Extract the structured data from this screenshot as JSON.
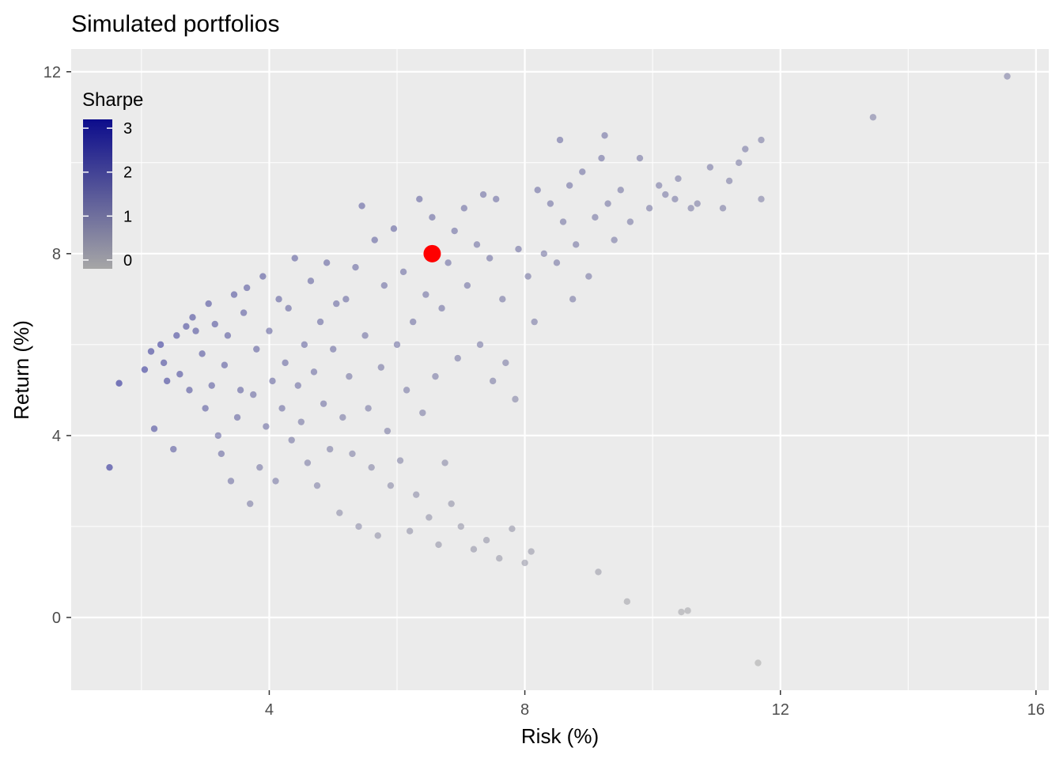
{
  "chart_data": {
    "type": "scatter",
    "title": "Simulated portfolios",
    "xlabel": "Risk (%)",
    "ylabel": "Return (%)",
    "xlim": [
      0.9,
      16.2
    ],
    "ylim": [
      -1.6,
      12.5
    ],
    "x_ticks": [
      4,
      8,
      12,
      16
    ],
    "y_ticks": [
      0,
      4,
      8,
      12
    ],
    "grid": true,
    "legend": {
      "title": "Sharpe",
      "position": "top-left inside",
      "type": "colorbar",
      "ticks": [
        0,
        1,
        2,
        3
      ],
      "range": [
        -0.2,
        3.2
      ],
      "low_color": "#a6a6a6",
      "high_color": "#0c0c8c"
    },
    "colors": {
      "panel_background": "#ebebeb",
      "grid": "#ffffff",
      "highlight": "#ff0000"
    },
    "highlight_point": {
      "x": 6.55,
      "y": 8.0
    },
    "points": [
      [
        1.5,
        3.3
      ],
      [
        1.65,
        5.15
      ],
      [
        2.05,
        5.45
      ],
      [
        2.15,
        5.85
      ],
      [
        2.2,
        4.15
      ],
      [
        2.3,
        6.0
      ],
      [
        2.35,
        5.6
      ],
      [
        2.4,
        5.2
      ],
      [
        2.5,
        3.7
      ],
      [
        2.55,
        6.2
      ],
      [
        2.6,
        5.35
      ],
      [
        2.7,
        6.4
      ],
      [
        2.75,
        5.0
      ],
      [
        2.8,
        6.6
      ],
      [
        2.85,
        6.3
      ],
      [
        2.95,
        5.8
      ],
      [
        3.0,
        4.6
      ],
      [
        3.05,
        6.9
      ],
      [
        3.1,
        5.1
      ],
      [
        3.15,
        6.45
      ],
      [
        3.2,
        4.0
      ],
      [
        3.25,
        3.6
      ],
      [
        3.3,
        5.55
      ],
      [
        3.35,
        6.2
      ],
      [
        3.4,
        3.0
      ],
      [
        3.45,
        7.1
      ],
      [
        3.5,
        4.4
      ],
      [
        3.55,
        5.0
      ],
      [
        3.6,
        6.7
      ],
      [
        3.65,
        7.25
      ],
      [
        3.7,
        2.5
      ],
      [
        3.75,
        4.9
      ],
      [
        3.8,
        5.9
      ],
      [
        3.85,
        3.3
      ],
      [
        3.9,
        7.5
      ],
      [
        3.95,
        4.2
      ],
      [
        4.0,
        6.3
      ],
      [
        4.05,
        5.2
      ],
      [
        4.1,
        3.0
      ],
      [
        4.15,
        7.0
      ],
      [
        4.2,
        4.6
      ],
      [
        4.25,
        5.6
      ],
      [
        4.3,
        6.8
      ],
      [
        4.35,
        3.9
      ],
      [
        4.4,
        7.9
      ],
      [
        4.45,
        5.1
      ],
      [
        4.5,
        4.3
      ],
      [
        4.55,
        6.0
      ],
      [
        4.6,
        3.4
      ],
      [
        4.65,
        7.4
      ],
      [
        4.7,
        5.4
      ],
      [
        4.75,
        2.9
      ],
      [
        4.8,
        6.5
      ],
      [
        4.85,
        4.7
      ],
      [
        4.9,
        7.8
      ],
      [
        4.95,
        3.7
      ],
      [
        5.0,
        5.9
      ],
      [
        5.05,
        6.9
      ],
      [
        5.1,
        2.3
      ],
      [
        5.15,
        4.4
      ],
      [
        5.2,
        7.0
      ],
      [
        5.25,
        5.3
      ],
      [
        5.3,
        3.6
      ],
      [
        5.35,
        7.7
      ],
      [
        5.4,
        2.0
      ],
      [
        5.45,
        9.05
      ],
      [
        5.5,
        6.2
      ],
      [
        5.55,
        4.6
      ],
      [
        5.6,
        3.3
      ],
      [
        5.65,
        8.3
      ],
      [
        5.7,
        1.8
      ],
      [
        5.75,
        5.5
      ],
      [
        5.8,
        7.3
      ],
      [
        5.85,
        4.1
      ],
      [
        5.9,
        2.9
      ],
      [
        5.95,
        8.55
      ],
      [
        6.0,
        6.0
      ],
      [
        6.05,
        3.45
      ],
      [
        6.1,
        7.6
      ],
      [
        6.15,
        5.0
      ],
      [
        6.2,
        1.9
      ],
      [
        6.25,
        6.5
      ],
      [
        6.3,
        2.7
      ],
      [
        6.35,
        9.2
      ],
      [
        6.4,
        4.5
      ],
      [
        6.45,
        7.1
      ],
      [
        6.5,
        2.2
      ],
      [
        6.55,
        8.8
      ],
      [
        6.6,
        5.3
      ],
      [
        6.65,
        1.6
      ],
      [
        6.7,
        6.8
      ],
      [
        6.75,
        3.4
      ],
      [
        6.8,
        7.8
      ],
      [
        6.85,
        2.5
      ],
      [
        6.9,
        8.5
      ],
      [
        6.95,
        5.7
      ],
      [
        7.0,
        2.0
      ],
      [
        7.05,
        9.0
      ],
      [
        7.1,
        7.3
      ],
      [
        7.2,
        1.5
      ],
      [
        7.25,
        8.2
      ],
      [
        7.3,
        6.0
      ],
      [
        7.35,
        9.3
      ],
      [
        7.4,
        1.7
      ],
      [
        7.45,
        7.9
      ],
      [
        7.5,
        5.2
      ],
      [
        7.55,
        9.2
      ],
      [
        7.6,
        1.3
      ],
      [
        7.65,
        7.0
      ],
      [
        7.7,
        5.6
      ],
      [
        7.8,
        1.95
      ],
      [
        7.85,
        4.8
      ],
      [
        7.9,
        8.1
      ],
      [
        8.0,
        1.2
      ],
      [
        8.05,
        7.5
      ],
      [
        8.1,
        1.45
      ],
      [
        8.15,
        6.5
      ],
      [
        8.2,
        9.4
      ],
      [
        8.3,
        8.0
      ],
      [
        8.4,
        9.1
      ],
      [
        8.5,
        7.8
      ],
      [
        8.55,
        10.5
      ],
      [
        8.6,
        8.7
      ],
      [
        8.7,
        9.5
      ],
      [
        8.75,
        7.0
      ],
      [
        8.8,
        8.2
      ],
      [
        8.9,
        9.8
      ],
      [
        9.0,
        7.5
      ],
      [
        9.1,
        8.8
      ],
      [
        9.15,
        1.0
      ],
      [
        9.2,
        10.1
      ],
      [
        9.25,
        10.6
      ],
      [
        9.3,
        9.1
      ],
      [
        9.4,
        8.3
      ],
      [
        9.5,
        9.4
      ],
      [
        9.6,
        0.35
      ],
      [
        9.65,
        8.7
      ],
      [
        9.8,
        10.1
      ],
      [
        9.95,
        9.0
      ],
      [
        10.1,
        9.5
      ],
      [
        10.2,
        9.3
      ],
      [
        10.35,
        9.2
      ],
      [
        10.4,
        9.65
      ],
      [
        10.45,
        0.12
      ],
      [
        10.55,
        0.15
      ],
      [
        10.6,
        9.0
      ],
      [
        10.7,
        9.1
      ],
      [
        10.9,
        9.9
      ],
      [
        11.1,
        9.0
      ],
      [
        11.2,
        9.6
      ],
      [
        11.35,
        10.0
      ],
      [
        11.45,
        10.3
      ],
      [
        11.65,
        -1.0
      ],
      [
        11.7,
        9.2
      ],
      [
        11.7,
        10.5
      ],
      [
        13.45,
        11.0
      ],
      [
        15.55,
        11.9
      ]
    ],
    "point_sharpe": [
      2.9,
      3.0,
      2.6,
      2.5,
      2.2,
      2.6,
      2.3,
      2.4,
      1.8,
      2.3,
      2.2,
      2.2,
      2.0,
      2.2,
      2.1,
      2.0,
      1.8,
      2.1,
      1.8,
      2.0,
      1.6,
      1.5,
      1.8,
      1.9,
      1.3,
      2.0,
      1.6,
      1.7,
      1.8,
      1.9,
      1.0,
      1.5,
      1.7,
      1.2,
      1.9,
      1.4,
      1.6,
      1.5,
      1.1,
      1.7,
      1.4,
      1.5,
      1.6,
      1.2,
      1.7,
      1.4,
      1.2,
      1.5,
      1.0,
      1.6,
      1.4,
      0.9,
      1.5,
      1.3,
      1.6,
      1.0,
      1.4,
      1.5,
      0.6,
      1.1,
      1.5,
      1.2,
      0.9,
      1.5,
      0.6,
      1.7,
      1.3,
      1.1,
      0.8,
      1.6,
      0.5,
      1.2,
      1.4,
      1.0,
      0.7,
      1.6,
      1.3,
      0.8,
      1.4,
      1.1,
      0.5,
      1.3,
      0.6,
      1.6,
      1.0,
      1.3,
      0.5,
      1.5,
      1.1,
      0.4,
      1.3,
      0.7,
      1.4,
      0.5,
      1.4,
      1.1,
      0.4,
      1.4,
      1.3,
      0.4,
      1.3,
      1.1,
      1.4,
      0.4,
      1.3,
      1.0,
      1.4,
      0.3,
      1.2,
      1.0,
      0.4,
      0.8,
      1.3,
      0.3,
      1.2,
      0.3,
      1.1,
      1.4,
      1.2,
      1.3,
      1.2,
      1.4,
      1.2,
      1.3,
      1.1,
      1.2,
      1.3,
      1.1,
      1.2,
      0.2,
      1.3,
      1.3,
      1.2,
      1.1,
      1.2,
      0.0,
      1.1,
      1.2,
      1.1,
      1.1,
      1.1,
      1.1,
      1.1,
      -0.1,
      -0.1,
      1.0,
      1.0,
      1.1,
      1.0,
      1.0,
      1.0,
      1.1,
      -0.2,
      0.9,
      1.0,
      0.9,
      0.9
    ]
  }
}
